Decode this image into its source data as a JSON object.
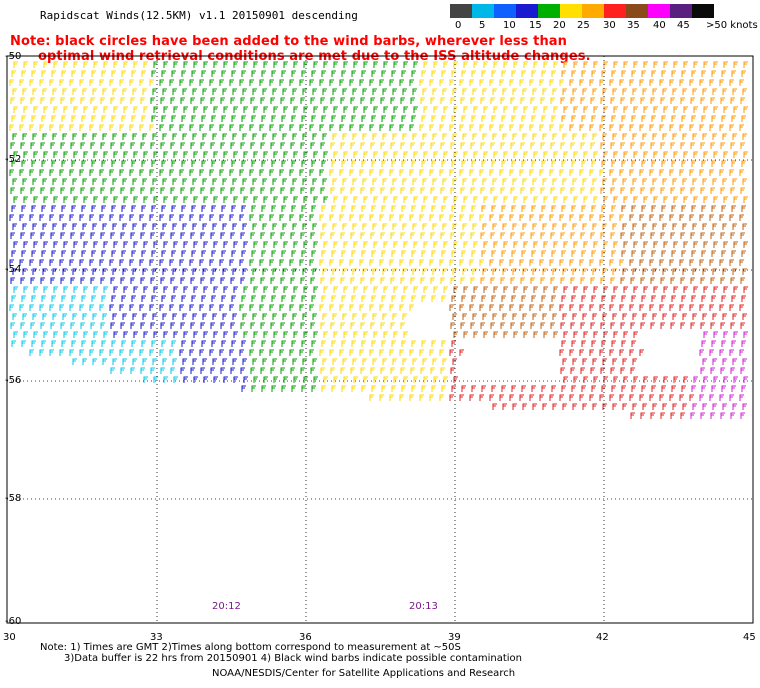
{
  "header": {
    "title": "Rapidscat Winds(12.5KM) v1.1 20150901 descending",
    "note_line1": "Note: black circles have been added to the wind barbs, wherever less than",
    "note_line2": "optimal wind retrieval conditions are met due to the ISS altitude changes."
  },
  "legend": {
    "labels": [
      "0",
      "5",
      "10",
      "15",
      "20",
      "25",
      "30",
      "35",
      "40",
      "45",
      ">50 knots"
    ],
    "colors": [
      "#444444",
      "#00b8e8",
      "#1060ff",
      "#1a1ad0",
      "#00b000",
      "#ffe000",
      "#ffaa00",
      "#ff2020",
      "#8a4a1a",
      "#ff00ff",
      "#5a2080",
      "#0a0a0a"
    ]
  },
  "map": {
    "lat_labels": [
      "-50",
      "-52",
      "-54",
      "-56",
      "-58",
      "-60"
    ],
    "lon_labels": [
      "30",
      "33",
      "36",
      "39",
      "42",
      "45"
    ],
    "time_labels": [
      "20:12",
      "20:13"
    ]
  },
  "footer": {
    "note_line1": "Note: 1) Times are GMT 2)Times along bottom correspond to measurement at ~50S",
    "note_line2": "3)Data buffer is 22 hrs from 20150901 4) Black wind barbs indicate possible contamination",
    "credit": "NOAA/NESDIS/Center for Satellite Applications and Research"
  },
  "colors": {
    "calm": "#444444",
    "light": "#00c8e8",
    "moderate_blue": "#1a1ad0",
    "green": "#00a000",
    "yellow": "#ffd800",
    "orange": "#ff9900",
    "brown": "#c06010",
    "red": "#e02020",
    "magenta": "#d020d0"
  }
}
